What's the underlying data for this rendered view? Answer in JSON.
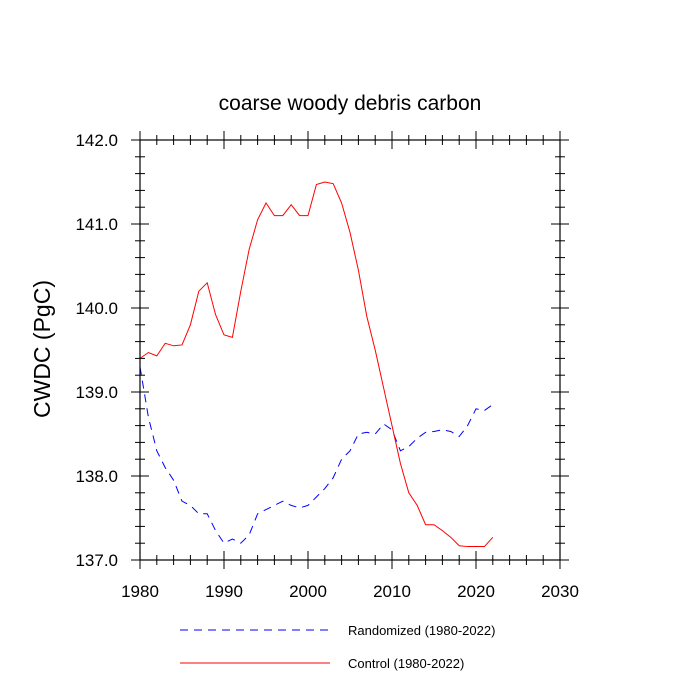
{
  "chart_data": {
    "type": "line",
    "title": "coarse woody debris carbon",
    "xlabel": "",
    "ylabel": "CWDC  (PgC)",
    "xlim": [
      1980,
      2030
    ],
    "ylim": [
      137.0,
      142.0
    ],
    "xticks": [
      1980,
      1990,
      2000,
      2010,
      2020,
      2030
    ],
    "xtick_labels": [
      "1980",
      "1990",
      "2000",
      "2010",
      "2020",
      "2030"
    ],
    "yticks": [
      137.0,
      138.0,
      139.0,
      140.0,
      141.0,
      142.0
    ],
    "ytick_labels": [
      "137.0",
      "138.0",
      "139.0",
      "140.0",
      "141.0",
      "142.0"
    ],
    "grid": false,
    "legend_position": "bottom",
    "x": [
      1980,
      1981,
      1982,
      1983,
      1984,
      1985,
      1986,
      1987,
      1988,
      1989,
      1990,
      1991,
      1992,
      1993,
      1994,
      1995,
      1996,
      1997,
      1998,
      1999,
      2000,
      2001,
      2002,
      2003,
      2004,
      2005,
      2006,
      2007,
      2008,
      2009,
      2010,
      2011,
      2012,
      2013,
      2014,
      2015,
      2016,
      2017,
      2018,
      2019,
      2020,
      2021,
      2022
    ],
    "series": [
      {
        "name": "Randomized (1980-2022)",
        "color": "#0000ff",
        "dash": "dashed",
        "values": [
          139.3,
          138.7,
          138.3,
          138.1,
          137.95,
          137.7,
          137.65,
          137.55,
          137.55,
          137.35,
          137.2,
          137.25,
          137.2,
          137.3,
          137.55,
          137.6,
          137.65,
          137.7,
          137.65,
          137.62,
          137.65,
          137.75,
          137.85,
          137.98,
          138.2,
          138.3,
          138.5,
          138.52,
          138.5,
          138.62,
          138.55,
          138.3,
          138.35,
          138.45,
          138.52,
          138.53,
          138.55,
          138.53,
          138.47,
          138.6,
          138.8,
          138.78,
          138.85
        ]
      },
      {
        "name": "Control (1980-2022)",
        "color": "#ff0000",
        "dash": "solid",
        "values": [
          139.4,
          139.47,
          139.43,
          139.58,
          139.55,
          139.56,
          139.8,
          140.2,
          140.3,
          139.92,
          139.68,
          139.65,
          140.2,
          140.7,
          141.05,
          141.25,
          141.1,
          141.1,
          141.23,
          141.1,
          141.1,
          141.47,
          141.5,
          141.48,
          141.25,
          140.9,
          140.45,
          139.9,
          139.5,
          139.05,
          138.6,
          138.15,
          137.8,
          137.65,
          137.42,
          137.42,
          137.35,
          137.27,
          137.17,
          137.16,
          137.16,
          137.16,
          137.27
        ]
      }
    ]
  }
}
